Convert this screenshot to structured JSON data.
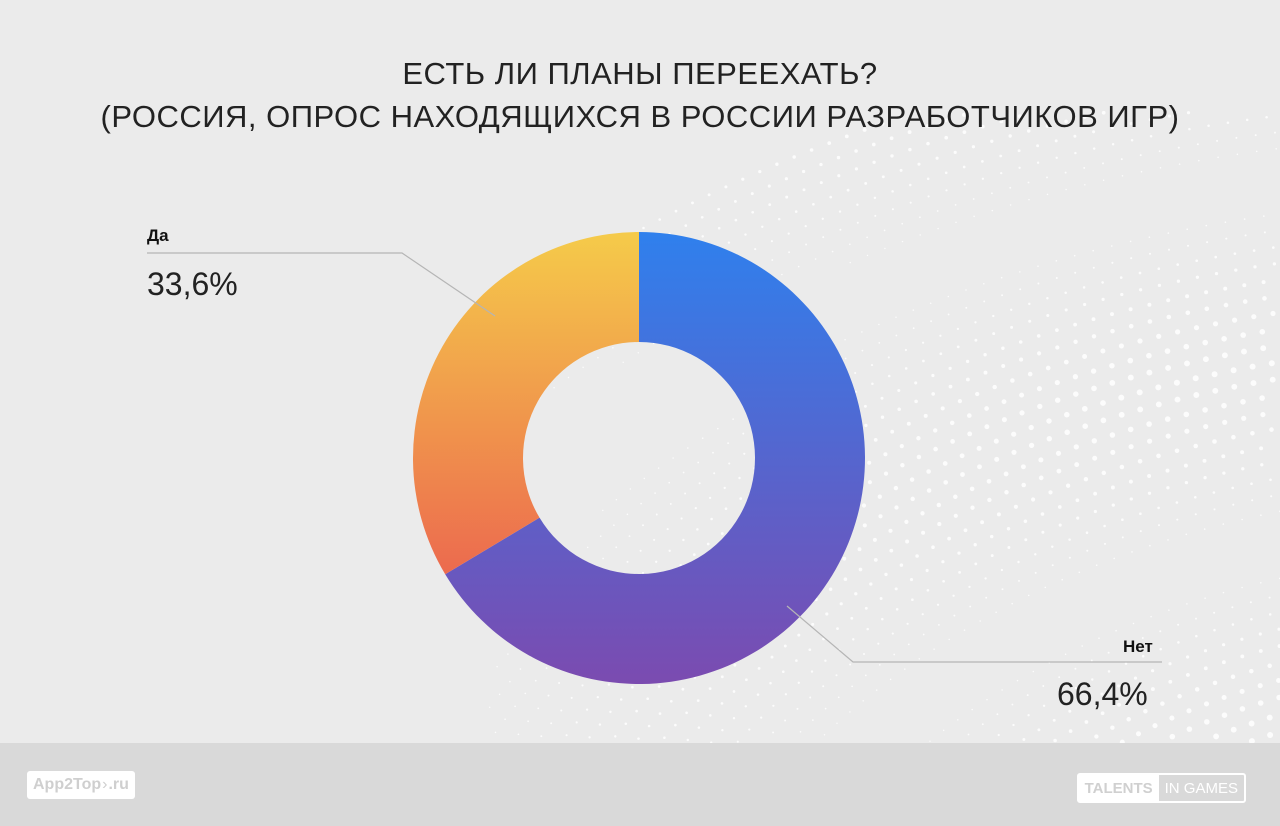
{
  "title": {
    "line1": "ЕСТЬ ЛИ ПЛАНЫ ПЕРЕЕХАТЬ?",
    "line2": "(РОССИЯ, ОПРОС НАХОДЯЩИХСЯ В РОССИИ РАЗРАБОТЧИКОВ ИГР)"
  },
  "chart_data": {
    "type": "pie",
    "title": "ЕСТЬ ЛИ ПЛАНЫ ПЕРЕЕХАТЬ? (РОССИЯ, ОПРОС НАХОДЯЩИХСЯ В РОССИИ РАЗРАБОТЧИКОВ ИГР)",
    "donut": true,
    "categories": [
      "Нет",
      "Да"
    ],
    "values": [
      66.4,
      33.6
    ],
    "value_labels": [
      "66,4%",
      "33,6%"
    ],
    "unit": "%",
    "colors": {
      "Нет": [
        "#2f80ed",
        "#7b4bb0"
      ],
      "Да": [
        "#f5cb4a",
        "#ec6a4e"
      ]
    }
  },
  "labels": {
    "no_name": "Нет",
    "no_value": "66,4%",
    "yes_name": "Да",
    "yes_value": "33,6%"
  },
  "footer": {
    "left_logo_main": "App2Top",
    "left_logo_sep": "›",
    "left_logo_tld": ".ru",
    "right_logo_box": "TALENTS",
    "right_logo_text": "IN GAMES"
  },
  "colors": {
    "background": "#ebebeb",
    "footer": "#d9d9d9",
    "leader_line": "#b5b5b5"
  }
}
